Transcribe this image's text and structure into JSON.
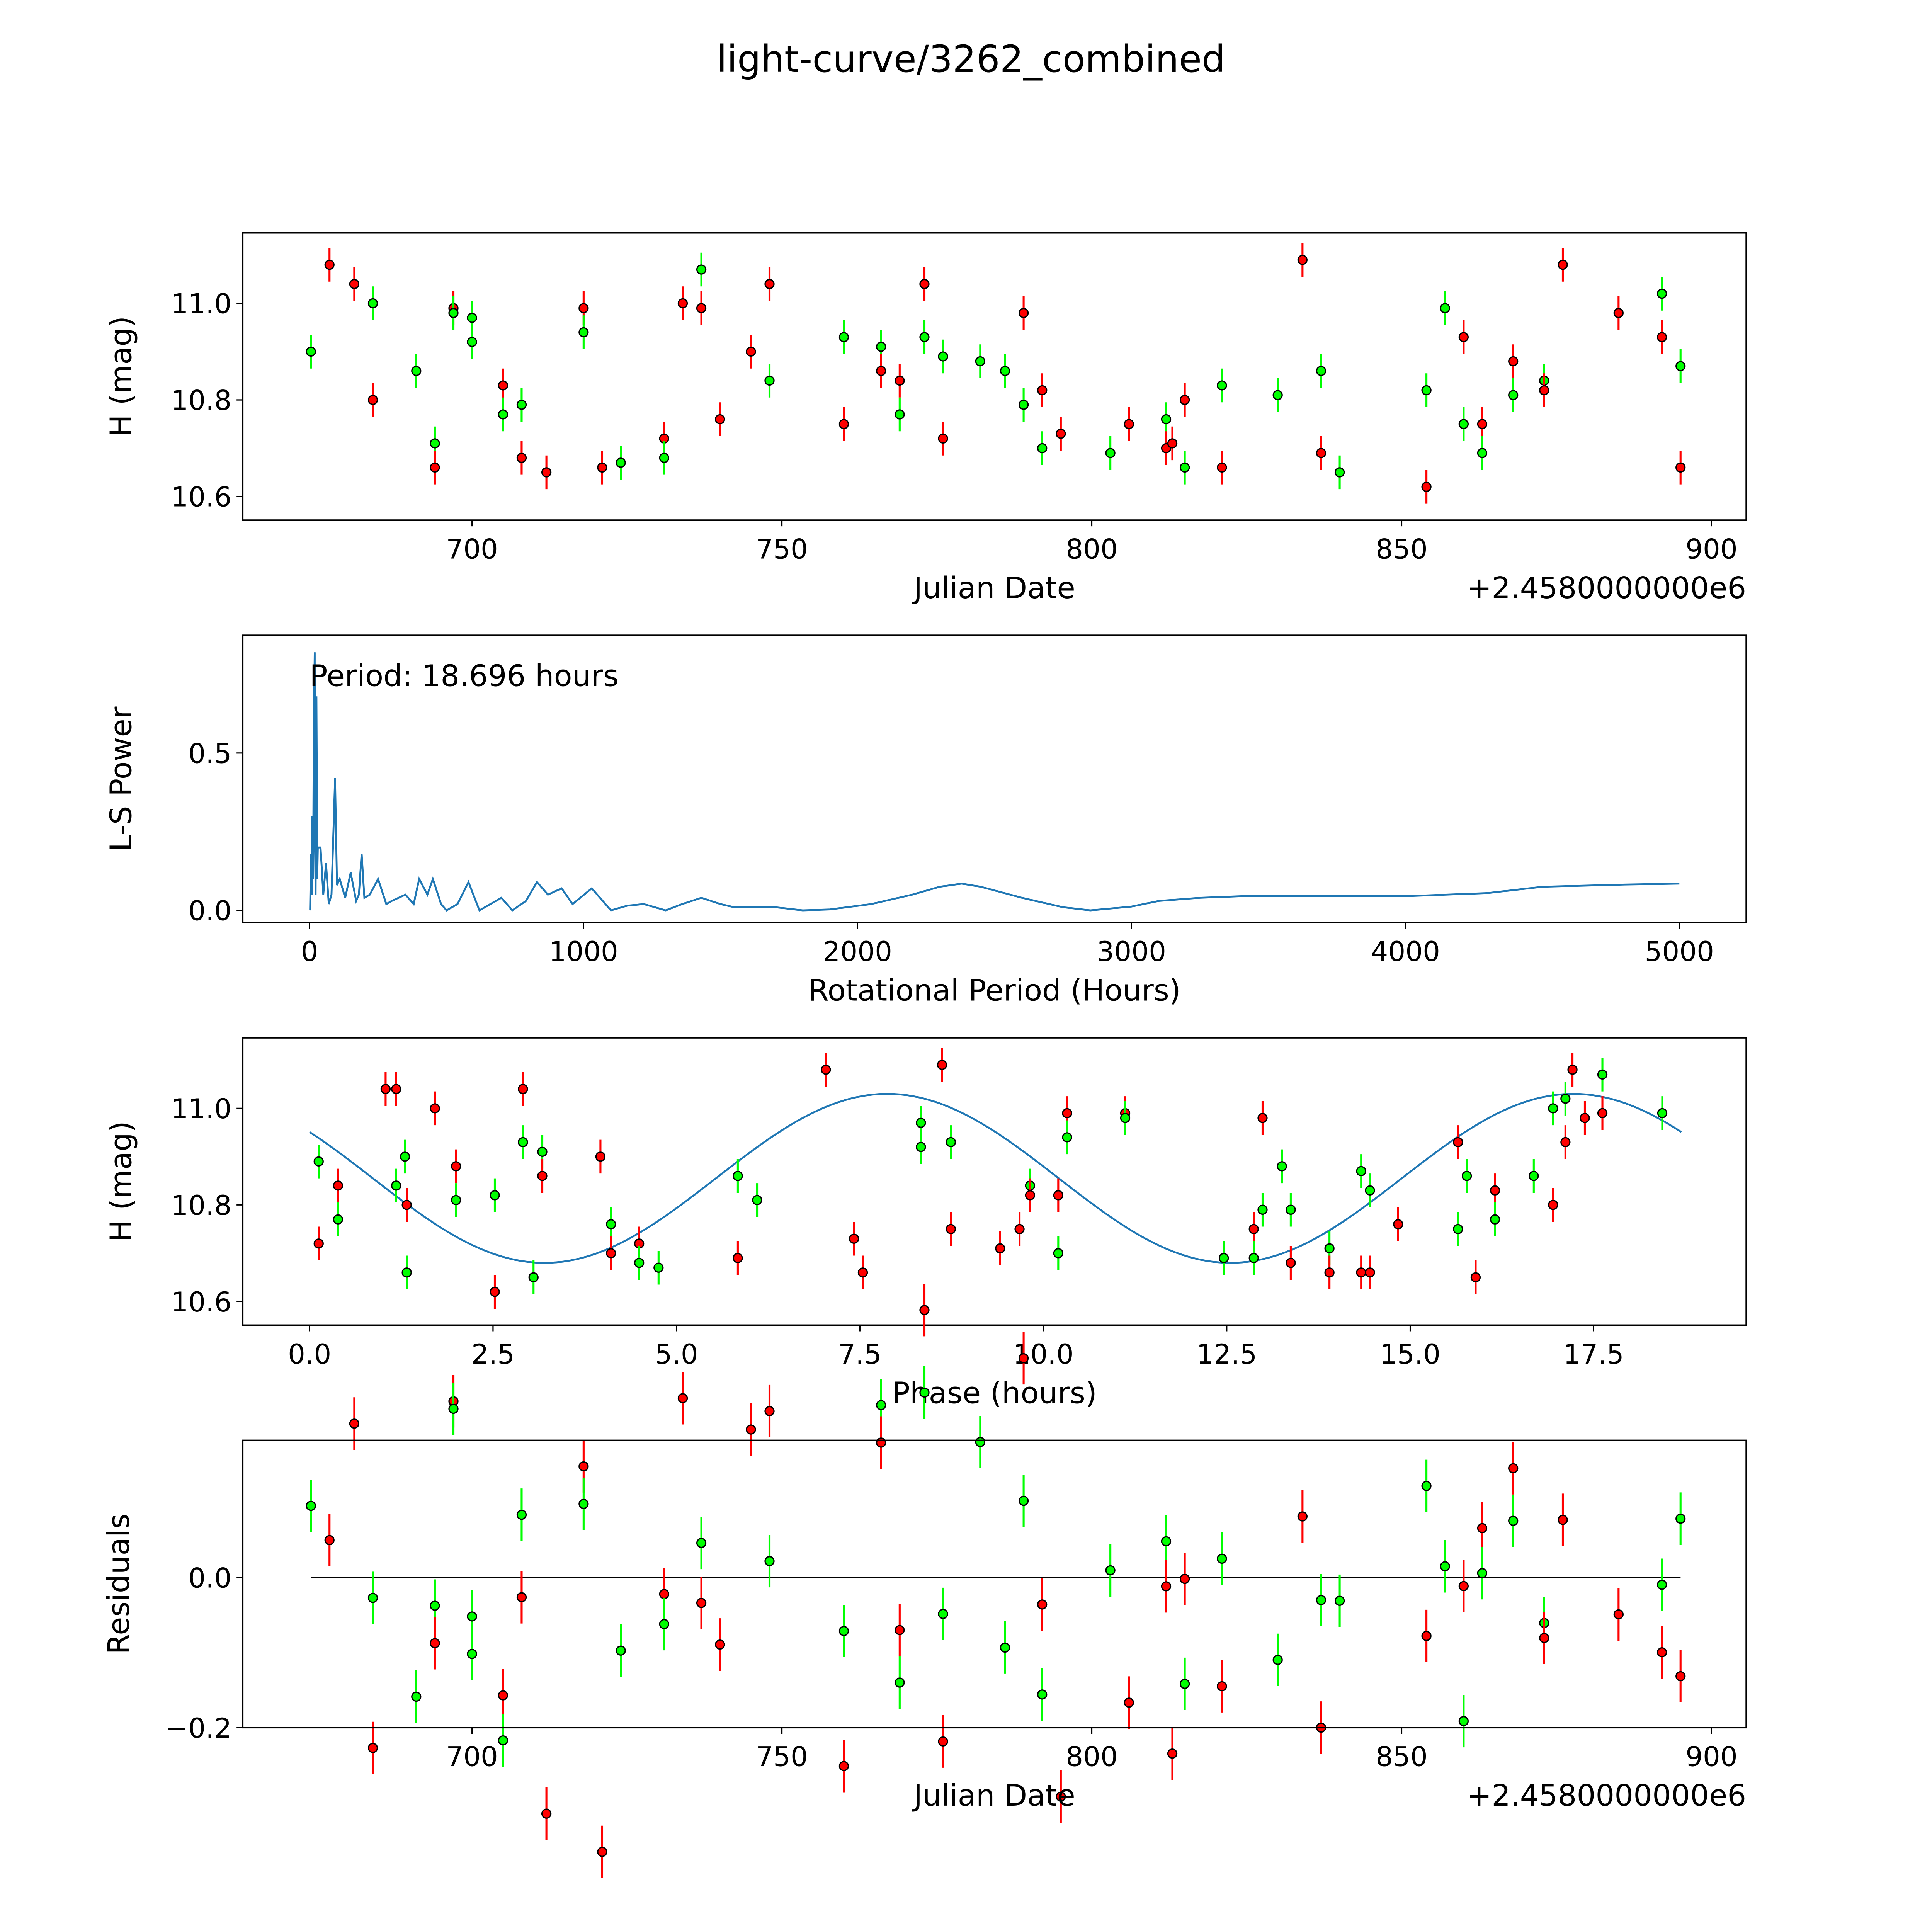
{
  "title": "light-curve/3262_combined",
  "colors": {
    "r": "#ff0000",
    "g": "#00ff00",
    "line": "#1f77b4"
  },
  "chart_data": [
    {
      "id": "lightcurve",
      "type": "scatter",
      "xlabel": "Julian Date",
      "ylabel": "H (mag)",
      "offset_text": "+2.4580000000e6",
      "xlim": [
        663.0,
        905.6
      ],
      "ylim": [
        10.551,
        11.146
      ],
      "xticks": [
        700,
        750,
        800,
        850,
        900
      ],
      "xtick_labels": [
        "700",
        "750",
        "800",
        "850",
        "900"
      ],
      "yticks": [
        10.6,
        10.8,
        11.0
      ],
      "ytick_labels": [
        "10.6",
        "10.8",
        "11.0"
      ],
      "error": 0.035,
      "points": [
        [
          674,
          10.9,
          "g"
        ],
        [
          677,
          11.08,
          "r"
        ],
        [
          681,
          11.04,
          "r"
        ],
        [
          684,
          11.0,
          "g"
        ],
        [
          684,
          10.8,
          "r"
        ],
        [
          691,
          10.86,
          "g"
        ],
        [
          694,
          10.71,
          "g"
        ],
        [
          694,
          10.66,
          "r"
        ],
        [
          697,
          10.99,
          "r"
        ],
        [
          697,
          10.98,
          "g"
        ],
        [
          700,
          10.97,
          "g"
        ],
        [
          700,
          10.92,
          "g"
        ],
        [
          705,
          10.83,
          "r"
        ],
        [
          705,
          10.77,
          "g"
        ],
        [
          708,
          10.79,
          "g"
        ],
        [
          708,
          10.68,
          "r"
        ],
        [
          712,
          10.65,
          "r"
        ],
        [
          718,
          10.99,
          "r"
        ],
        [
          718,
          10.94,
          "g"
        ],
        [
          721,
          10.66,
          "r"
        ],
        [
          724,
          10.67,
          "g"
        ],
        [
          731,
          10.72,
          "r"
        ],
        [
          731,
          10.68,
          "g"
        ],
        [
          734,
          11.0,
          "r"
        ],
        [
          737,
          10.99,
          "r"
        ],
        [
          737,
          11.07,
          "g"
        ],
        [
          740,
          10.76,
          "r"
        ],
        [
          745,
          10.9,
          "r"
        ],
        [
          748,
          10.84,
          "g"
        ],
        [
          748,
          11.04,
          "r"
        ],
        [
          760,
          10.93,
          "g"
        ],
        [
          760,
          10.75,
          "r"
        ],
        [
          766,
          10.91,
          "g"
        ],
        [
          766,
          10.86,
          "r"
        ],
        [
          769,
          10.84,
          "r"
        ],
        [
          769,
          10.77,
          "g"
        ],
        [
          773,
          10.93,
          "g"
        ],
        [
          773,
          11.04,
          "r"
        ],
        [
          776,
          10.89,
          "g"
        ],
        [
          776,
          10.72,
          "r"
        ],
        [
          782,
          10.88,
          "g"
        ],
        [
          786,
          10.86,
          "g"
        ],
        [
          789,
          10.79,
          "g"
        ],
        [
          789,
          10.98,
          "r"
        ],
        [
          792,
          10.82,
          "r"
        ],
        [
          792,
          10.7,
          "g"
        ],
        [
          795,
          10.73,
          "r"
        ],
        [
          803,
          10.69,
          "g"
        ],
        [
          806,
          10.75,
          "r"
        ],
        [
          812,
          10.76,
          "g"
        ],
        [
          812,
          10.7,
          "r"
        ],
        [
          813,
          10.71,
          "r"
        ],
        [
          815,
          10.8,
          "r"
        ],
        [
          815,
          10.66,
          "g"
        ],
        [
          821,
          10.83,
          "g"
        ],
        [
          821,
          10.66,
          "r"
        ],
        [
          830,
          10.81,
          "g"
        ],
        [
          834,
          11.09,
          "r"
        ],
        [
          837,
          10.86,
          "g"
        ],
        [
          837,
          10.69,
          "r"
        ],
        [
          840,
          10.65,
          "g"
        ],
        [
          854,
          10.82,
          "g"
        ],
        [
          854,
          10.62,
          "r"
        ],
        [
          857,
          10.99,
          "g"
        ],
        [
          860,
          10.93,
          "r"
        ],
        [
          860,
          10.75,
          "g"
        ],
        [
          863,
          10.75,
          "r"
        ],
        [
          863,
          10.69,
          "g"
        ],
        [
          868,
          10.88,
          "r"
        ],
        [
          868,
          10.81,
          "g"
        ],
        [
          873,
          10.84,
          "g"
        ],
        [
          873,
          10.82,
          "r"
        ],
        [
          876,
          11.08,
          "r"
        ],
        [
          885,
          10.98,
          "r"
        ],
        [
          892,
          11.02,
          "g"
        ],
        [
          892,
          10.93,
          "r"
        ],
        [
          895,
          10.87,
          "g"
        ],
        [
          895,
          10.66,
          "r"
        ]
      ]
    },
    {
      "id": "periodogram",
      "type": "line",
      "xlabel": "Rotational Period (Hours)",
      "ylabel": "L-S Power",
      "annotation": "Period: 18.696 hours",
      "xlim": [
        -244,
        5244
      ],
      "ylim": [
        -0.039,
        0.874
      ],
      "xticks": [
        0,
        1000,
        2000,
        3000,
        4000,
        5000
      ],
      "xtick_labels": [
        "0",
        "1000",
        "2000",
        "3000",
        "4000",
        "5000"
      ],
      "yticks": [
        0.0,
        0.5
      ],
      "ytick_labels": [
        "0.0",
        "0.5"
      ],
      "x": [
        2,
        5,
        8,
        10,
        13,
        15,
        18.7,
        20,
        22,
        25,
        28,
        30,
        40,
        50,
        60,
        70,
        80,
        93,
        100,
        110,
        130,
        150,
        170,
        180,
        190,
        200,
        220,
        250,
        280,
        300,
        350,
        380,
        400,
        430,
        450,
        480,
        500,
        540,
        580,
        620,
        660,
        700,
        740,
        790,
        830,
        870,
        920,
        960,
        1030,
        1100,
        1160,
        1220,
        1300,
        1360,
        1430,
        1500,
        1550,
        1700,
        1800,
        1900,
        2050,
        2200,
        2300,
        2380,
        2450,
        2600,
        2750,
        2850,
        3000,
        3100,
        3250,
        3400,
        3700,
        4000,
        4300,
        4500,
        4800,
        5000
      ],
      "y": [
        0.0,
        0.18,
        0.05,
        0.3,
        0.1,
        0.55,
        0.82,
        0.2,
        0.05,
        0.68,
        0.1,
        0.2,
        0.2,
        0.05,
        0.15,
        0.02,
        0.05,
        0.42,
        0.08,
        0.1,
        0.04,
        0.12,
        0.03,
        0.05,
        0.18,
        0.04,
        0.05,
        0.1,
        0.02,
        0.03,
        0.05,
        0.02,
        0.1,
        0.05,
        0.1,
        0.02,
        0.0,
        0.02,
        0.09,
        0.0,
        0.02,
        0.04,
        0.0,
        0.03,
        0.09,
        0.05,
        0.07,
        0.02,
        0.07,
        0.0,
        0.015,
        0.02,
        0.0,
        0.02,
        0.04,
        0.02,
        0.01,
        0.01,
        0.0,
        0.003,
        0.02,
        0.05,
        0.075,
        0.085,
        0.075,
        0.04,
        0.01,
        0.0,
        0.012,
        0.03,
        0.04,
        0.045,
        0.045,
        0.045,
        0.055,
        0.075,
        0.082,
        0.085
      ]
    },
    {
      "id": "phased",
      "type": "scatter",
      "xlabel": "Phase (hours)",
      "ylabel": "H (mag)",
      "period_hours": 18.696,
      "phase_zero_jd": 674,
      "phase_zero_offset": 1.3,
      "model": {
        "mean": 10.855,
        "amplitude": 0.175,
        "min_phase": 3.2
      },
      "xlim": [
        -0.911,
        19.58
      ],
      "ylim": [
        10.551,
        11.146
      ],
      "xticks": [
        0,
        2.5,
        5,
        7.5,
        10,
        12.5,
        15,
        17.5
      ],
      "xtick_labels": [
        "0.0",
        "2.5",
        "5.0",
        "7.5",
        "10.0",
        "12.5",
        "15.0",
        "17.5"
      ],
      "yticks": [
        10.6,
        10.8,
        11.0
      ],
      "ytick_labels": [
        "10.6",
        "10.8",
        "11.0"
      ]
    },
    {
      "id": "residuals",
      "type": "scatter",
      "xlabel": "Julian Date",
      "ylabel": "Residuals",
      "offset_text": "+2.4580000000e6",
      "xlim": [
        663.0,
        905.6
      ],
      "ylim": [
        -0.2,
        0.183
      ],
      "xticks": [
        700,
        750,
        800,
        850,
        900
      ],
      "xtick_labels": [
        "700",
        "750",
        "800",
        "850",
        "900"
      ],
      "yticks": [
        -0.2,
        0.0
      ],
      "ytick_labels": [
        "−0.2",
        "0.0"
      ]
    }
  ]
}
